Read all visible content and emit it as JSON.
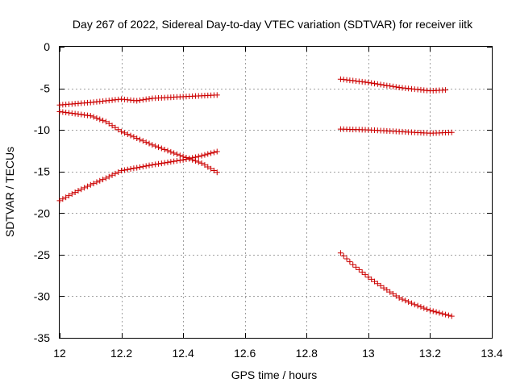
{
  "chart_data": {
    "type": "scatter",
    "title": "Day 267 of 2022, Sidereal Day-to-day VTEC variation (SDTVAR) for receiver iitk",
    "xlabel": "GPS time / hours",
    "ylabel": "SDTVAR / TECUs",
    "xlim": [
      12,
      13.4
    ],
    "ylim": [
      -35,
      0
    ],
    "xticks": [
      12,
      12.2,
      12.4,
      12.6,
      12.8,
      13,
      13.2,
      13.4
    ],
    "xtick_labels": [
      "12",
      "12.2",
      "12.4",
      "12.6",
      "12.8",
      "13",
      "13.2",
      "13.4"
    ],
    "yticks": [
      0,
      -5,
      -10,
      -15,
      -20,
      -25,
      -30,
      -35
    ],
    "ytick_labels": [
      "0",
      "-5",
      "-10",
      "-15",
      "-20",
      "-25",
      "-30",
      "-35"
    ],
    "grid": true,
    "marker": "+",
    "color": "#cc0000",
    "series": [
      {
        "name": "track-a",
        "x_start": 12.0,
        "x_end": 12.51,
        "step": 0.01,
        "anchors": [
          [
            12.0,
            -7.0
          ],
          [
            12.1,
            -6.7
          ],
          [
            12.2,
            -6.3
          ],
          [
            12.25,
            -6.5
          ],
          [
            12.3,
            -6.2
          ],
          [
            12.4,
            -6.0
          ],
          [
            12.51,
            -5.8
          ]
        ]
      },
      {
        "name": "track-b",
        "x_start": 12.0,
        "x_end": 12.51,
        "step": 0.01,
        "anchors": [
          [
            12.0,
            -7.8
          ],
          [
            12.1,
            -8.3
          ],
          [
            12.15,
            -9.0
          ],
          [
            12.2,
            -10.2
          ],
          [
            12.3,
            -11.8
          ],
          [
            12.4,
            -13.2
          ],
          [
            12.46,
            -14.0
          ],
          [
            12.51,
            -15.1
          ]
        ]
      },
      {
        "name": "track-c",
        "x_start": 12.0,
        "x_end": 12.51,
        "step": 0.01,
        "anchors": [
          [
            12.0,
            -18.5
          ],
          [
            12.05,
            -17.5
          ],
          [
            12.1,
            -16.6
          ],
          [
            12.15,
            -15.8
          ],
          [
            12.2,
            -14.9
          ],
          [
            12.3,
            -14.2
          ],
          [
            12.4,
            -13.6
          ],
          [
            12.45,
            -13.2
          ],
          [
            12.51,
            -12.6
          ]
        ]
      },
      {
        "name": "track-d",
        "x_start": 12.91,
        "x_end": 13.25,
        "step": 0.01,
        "anchors": [
          [
            12.91,
            -3.9
          ],
          [
            13.0,
            -4.3
          ],
          [
            13.1,
            -4.9
          ],
          [
            13.2,
            -5.3
          ],
          [
            13.25,
            -5.2
          ]
        ]
      },
      {
        "name": "track-e",
        "x_start": 12.91,
        "x_end": 13.27,
        "step": 0.01,
        "anchors": [
          [
            12.91,
            -9.9
          ],
          [
            13.0,
            -10.0
          ],
          [
            13.1,
            -10.2
          ],
          [
            13.2,
            -10.4
          ],
          [
            13.27,
            -10.3
          ]
        ]
      },
      {
        "name": "track-f",
        "x_start": 12.91,
        "x_end": 13.27,
        "step": 0.01,
        "anchors": [
          [
            12.91,
            -24.8
          ],
          [
            12.95,
            -26.2
          ],
          [
            13.0,
            -27.7
          ],
          [
            13.05,
            -29.0
          ],
          [
            13.1,
            -30.2
          ],
          [
            13.15,
            -31.0
          ],
          [
            13.2,
            -31.7
          ],
          [
            13.27,
            -32.4
          ]
        ]
      }
    ]
  }
}
